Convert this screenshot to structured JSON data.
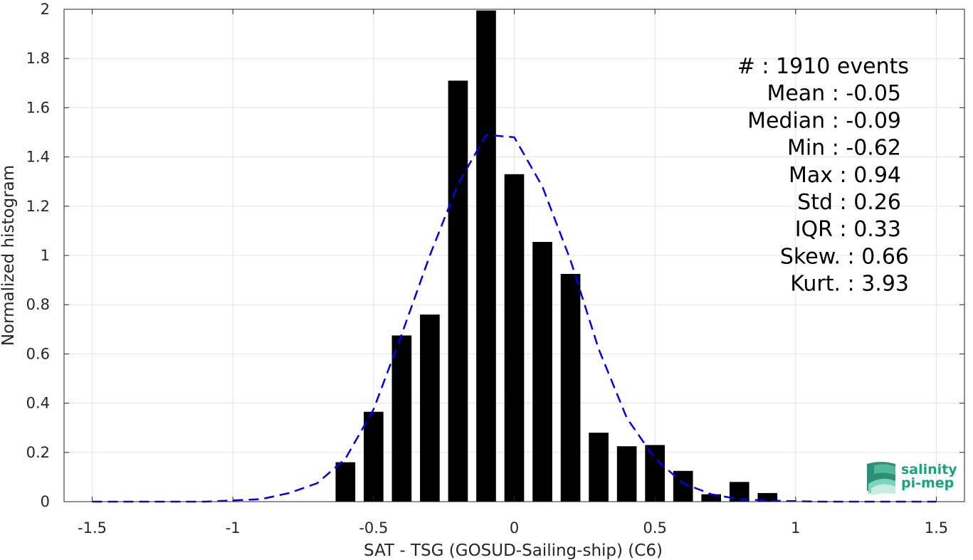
{
  "chart_data": {
    "type": "bar",
    "xlabel": "SAT - TSG (GOSUD-Sailing-ship) (C6)",
    "ylabel": "Normalized histogram",
    "xlim": [
      -1.6,
      1.6
    ],
    "ylim": [
      0,
      2
    ],
    "xticks": [
      -1.5,
      -1,
      -0.5,
      0,
      0.5,
      1,
      1.5
    ],
    "xtick_labels": [
      "-1.5",
      "-1",
      "-0.5",
      "0",
      "0.5",
      "1",
      "1.5"
    ],
    "yticks": [
      0,
      0.2,
      0.4,
      0.6,
      0.8,
      1,
      1.2,
      1.4,
      1.6,
      1.8,
      2
    ],
    "ytick_labels": [
      "0",
      "0.2",
      "0.4",
      "0.6",
      "0.8",
      "1",
      "1.2",
      "1.4",
      "1.6",
      "1.8",
      "2"
    ],
    "grid": true,
    "bar_width": 0.07,
    "bars": {
      "x": [
        -0.6,
        -0.5,
        -0.4,
        -0.3,
        -0.2,
        -0.1,
        0.0,
        0.1,
        0.2,
        0.3,
        0.4,
        0.5,
        0.6,
        0.7,
        0.8,
        0.9
      ],
      "values": [
        0.16,
        0.365,
        0.675,
        0.76,
        1.71,
        1.995,
        1.33,
        1.055,
        0.925,
        0.28,
        0.225,
        0.23,
        0.125,
        0.03,
        0.08,
        0.035
      ],
      "color": "#000000"
    },
    "fit_curve": {
      "style": "dashed",
      "color": "#0000e6",
      "x": [
        -1.5,
        -1.4,
        -1.3,
        -1.2,
        -1.1,
        -1.0,
        -0.9,
        -0.8,
        -0.7,
        -0.6,
        -0.5,
        -0.4,
        -0.3,
        -0.2,
        -0.1,
        0.0,
        0.1,
        0.2,
        0.3,
        0.4,
        0.5,
        0.6,
        0.7,
        0.8,
        0.9,
        1.0,
        1.1,
        1.2,
        1.3,
        1.4,
        1.5
      ],
      "y": [
        0.0,
        0.0,
        0.0,
        0.0,
        0.0,
        0.005,
        0.01,
        0.035,
        0.075,
        0.175,
        0.375,
        0.68,
        1.0,
        1.29,
        1.49,
        1.48,
        1.28,
        0.98,
        0.62,
        0.34,
        0.175,
        0.075,
        0.03,
        0.01,
        0.004,
        0.002,
        0.0,
        0.0,
        0.0,
        0.0,
        0.0
      ]
    },
    "stats_lines": [
      "#  : 1910 events",
      "Mean : -0.05",
      "Median : -0.09",
      "Min : -0.62",
      "Max : 0.94",
      "Std : 0.26",
      "IQR : 0.33",
      "Skew. : 0.66",
      "Kurt. : 3.93"
    ]
  },
  "logo": {
    "line1": "salinity",
    "line2": "pi-mep"
  }
}
